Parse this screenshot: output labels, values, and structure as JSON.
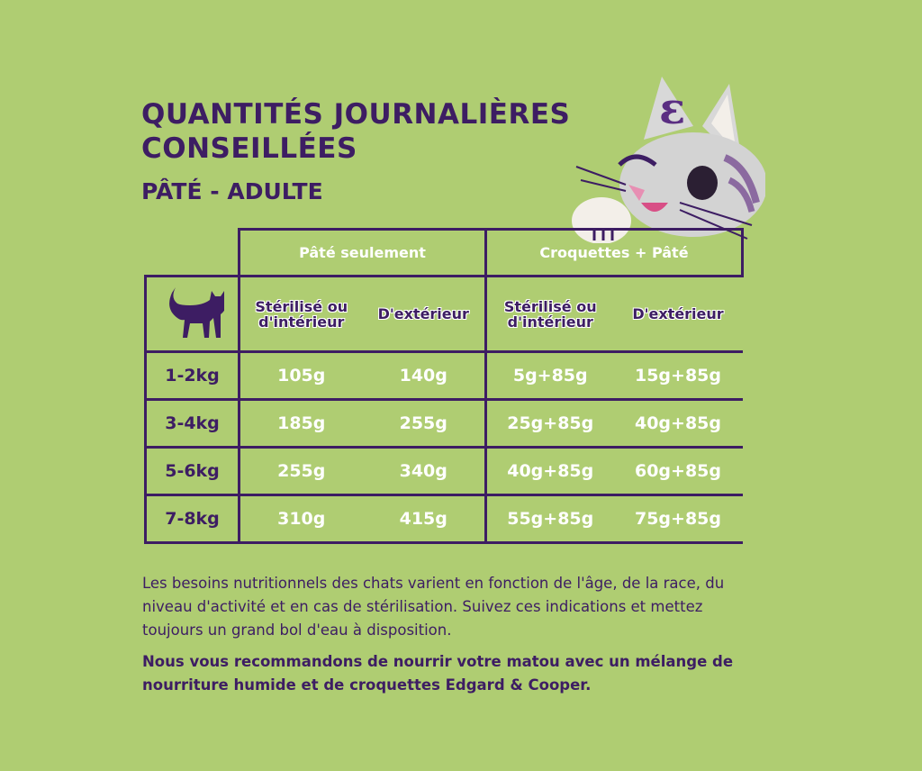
{
  "header": {
    "title_lines": [
      "QUANTITÉS JOURNALIÈRES",
      "CONSEILLÉES"
    ],
    "subtitle": "PÂTÉ - ADULTE"
  },
  "table": {
    "groups": [
      "Pâté seulement",
      "Croquettes + Pâté"
    ],
    "subheaders": [
      "Stérilisé ou d'intérieur",
      "D'extérieur",
      "Stérilisé ou d'intérieur",
      "D'extérieur"
    ],
    "rows": [
      [
        "1-2kg",
        "105g",
        "140g",
        "5g+85g",
        "15g+85g"
      ],
      [
        "3-4kg",
        "185g",
        "255g",
        "25g+85g",
        "40g+85g"
      ],
      [
        "5-6kg",
        "255g",
        "340g",
        "40g+85g",
        "60g+85g"
      ],
      [
        "7-8kg",
        "310g",
        "415g",
        "55g+85g",
        "75g+85g"
      ]
    ]
  },
  "paragraphs": [
    "Les besoins nutritionnels des chats varient en fonction de l'âge, de la race, du niveau d'activité et en cas de stérilisation. Suivez ces indications et mettez toujours un grand bol d'eau à disposition.",
    "Nous vous recommandons de nourrir votre matou avec un mélange de nourriture humide et de croquettes Edgard & Cooper."
  ]
}
